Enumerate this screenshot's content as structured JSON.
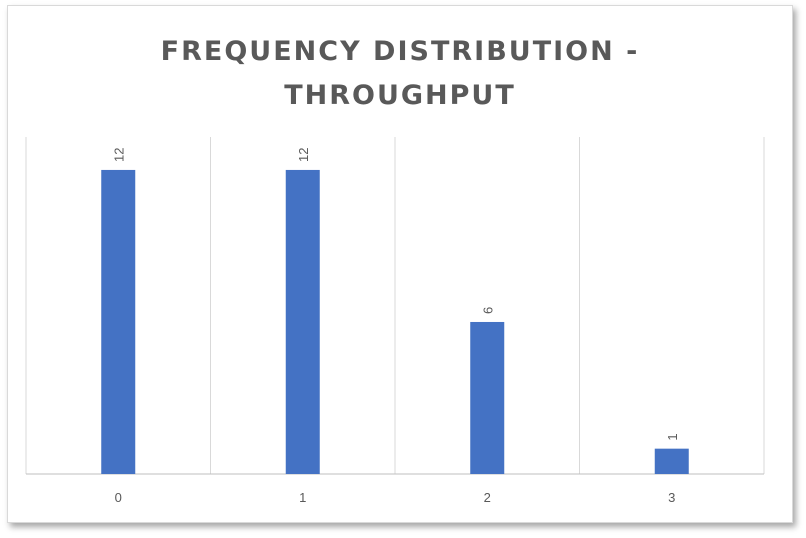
{
  "chart_data": {
    "type": "bar",
    "title_lines": [
      "FREQUENCY DISTRIBUTION -",
      "THROUGHPUT"
    ],
    "categories": [
      "0",
      "1",
      "2",
      "3"
    ],
    "values": [
      12,
      12,
      6,
      1
    ],
    "data_labels": [
      "12",
      "12",
      "6",
      "1"
    ],
    "ylim": [
      0,
      13.3
    ],
    "xlabel": "",
    "ylabel": "",
    "gridlines": "vertical",
    "legend": "none",
    "bar_color": "#4472C4"
  }
}
